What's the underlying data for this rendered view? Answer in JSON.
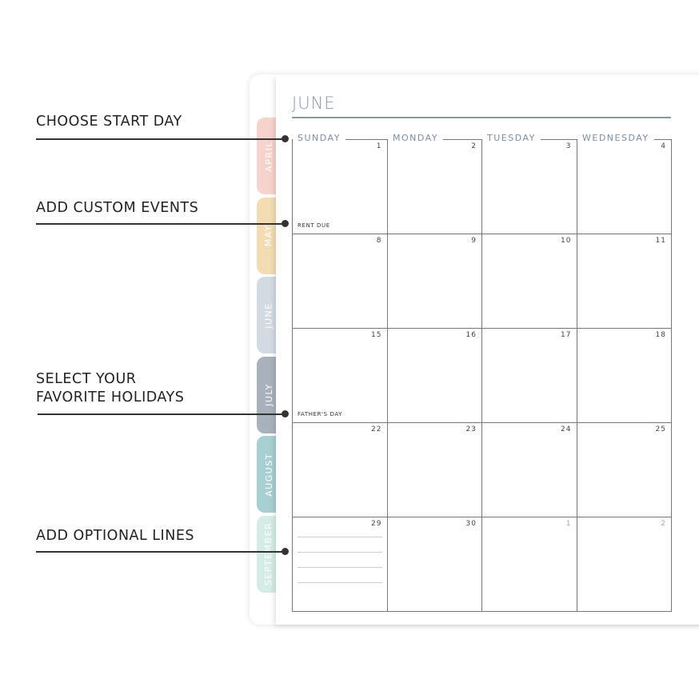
{
  "annotations": [
    {
      "label": "CHOOSE START DAY"
    },
    {
      "label": "ADD CUSTOM EVENTS"
    },
    {
      "label": "SELECT YOUR\nFAVORITE HOLIDAYS",
      "line1": "SELECT YOUR",
      "line2": "FAVORITE HOLIDAYS"
    },
    {
      "label": "ADD OPTIONAL LINES"
    }
  ],
  "tabs": [
    {
      "label": "APRIL",
      "color": "#f6d3cc"
    },
    {
      "label": "MAY",
      "color": "#f3dcb4"
    },
    {
      "label": "JUNE",
      "color": "#d3dae2"
    },
    {
      "label": "JULY",
      "color": "#a9b1bd"
    },
    {
      "label": "AUGUST",
      "color": "#a8cfd2"
    },
    {
      "label": "SEPTEMBER",
      "color": "#d5ece6"
    }
  ],
  "calendar": {
    "month": "JUNE",
    "days": [
      "SUNDAY",
      "MONDAY",
      "TUESDAY",
      "WEDNESDAY"
    ],
    "dates": [
      "1",
      "2",
      "3",
      "4",
      "8",
      "9",
      "10",
      "11",
      "15",
      "16",
      "17",
      "18",
      "22",
      "23",
      "24",
      "25",
      "29",
      "30",
      "1",
      "2"
    ],
    "events": {
      "rent": "RENT DUE",
      "fathers": "FATHER'S DAY"
    }
  }
}
